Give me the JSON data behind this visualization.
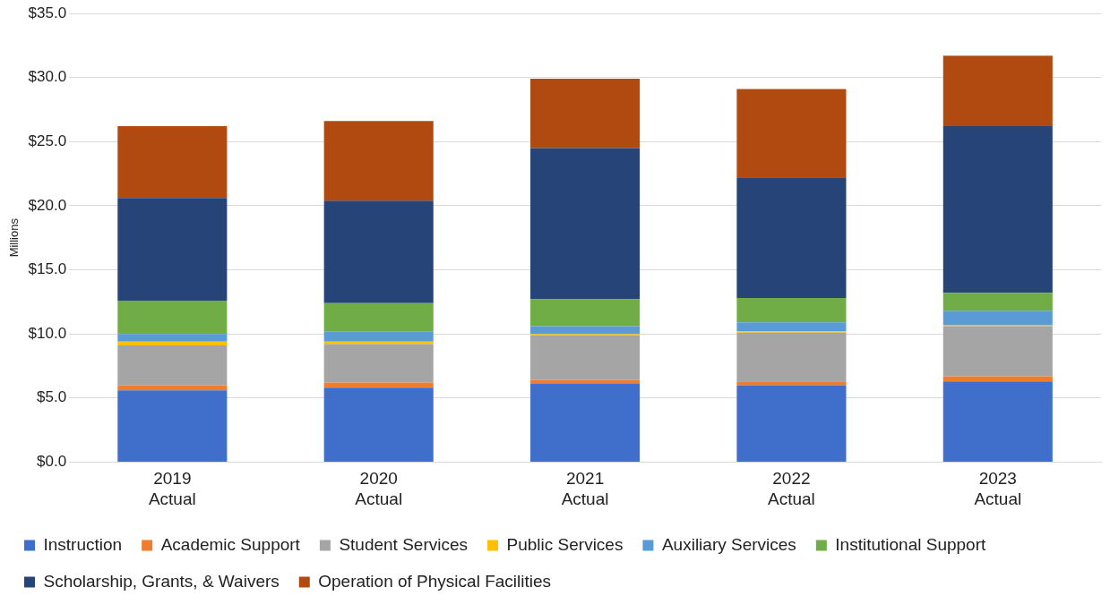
{
  "chart_data": {
    "type": "bar",
    "stacked": true,
    "ylabel": "Millions",
    "categories": [
      "2019 Actual",
      "2020 Actual",
      "2021 Actual",
      "2022 Actual",
      "2023 Actual"
    ],
    "series": [
      {
        "name": "Instruction",
        "color": "#3f6fcb",
        "values": [
          5.6,
          5.8,
          6.1,
          6.0,
          6.3
        ]
      },
      {
        "name": "Academic Support",
        "color": "#ed7d31",
        "values": [
          0.4,
          0.4,
          0.3,
          0.3,
          0.4
        ]
      },
      {
        "name": "Student Services",
        "color": "#a5a5a5",
        "values": [
          3.1,
          3.0,
          3.5,
          3.8,
          3.9
        ]
      },
      {
        "name": "Public Services",
        "color": "#ffc000",
        "values": [
          0.3,
          0.2,
          0.1,
          0.1,
          0.1
        ]
      },
      {
        "name": "Auxiliary Services",
        "color": "#5b9bd5",
        "values": [
          0.6,
          0.8,
          0.6,
          0.7,
          1.1
        ]
      },
      {
        "name": "Institutional Support",
        "color": "#70ad47",
        "values": [
          2.6,
          2.2,
          2.1,
          1.9,
          1.4
        ]
      },
      {
        "name": "Scholarship, Grants, & Waivers",
        "color": "#264478",
        "values": [
          8.0,
          8.0,
          11.8,
          9.4,
          13.0
        ]
      },
      {
        "name": "Operation of Physical Facilities",
        "color": "#b04a10",
        "values": [
          5.6,
          6.2,
          5.4,
          6.9,
          5.5
        ]
      }
    ],
    "ylim": [
      0,
      35
    ],
    "yticks": [
      {
        "value": 0,
        "label": "$0.0"
      },
      {
        "value": 5,
        "label": "$5.0"
      },
      {
        "value": 10,
        "label": "$10.0"
      },
      {
        "value": 15,
        "label": "$15.0"
      },
      {
        "value": 20,
        "label": "$20.0"
      },
      {
        "value": 25,
        "label": "$25.0"
      },
      {
        "value": 30,
        "label": "$30.0"
      },
      {
        "value": 35,
        "label": "$35.0"
      }
    ],
    "grid": "y",
    "legend": "bottom"
  }
}
